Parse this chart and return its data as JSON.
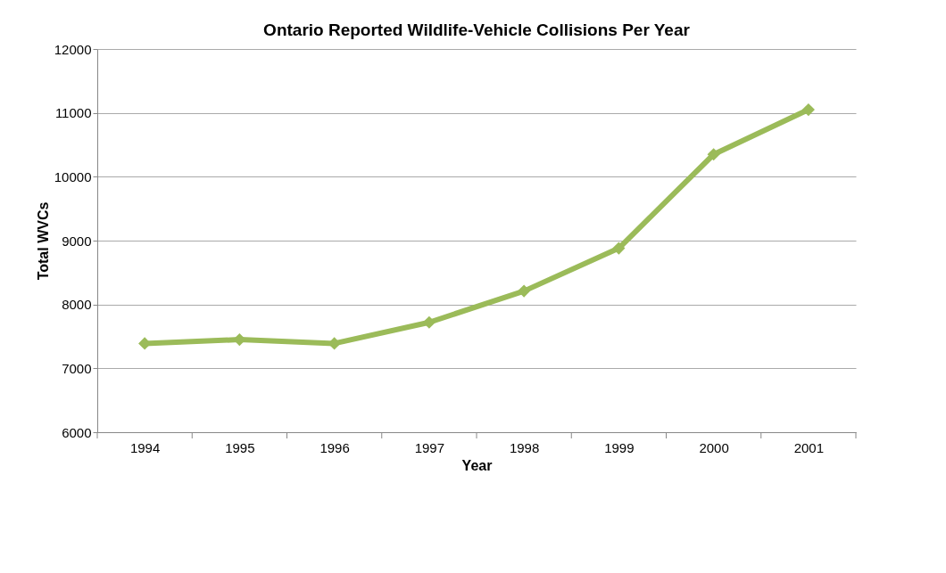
{
  "chart_data": {
    "type": "line",
    "title": "Ontario Reported Wildlife-Vehicle Collisions Per Year",
    "xlabel": "Year",
    "ylabel": "Total WVCs",
    "categories": [
      "1994",
      "1995",
      "1996",
      "1997",
      "1998",
      "1999",
      "2000",
      "2001"
    ],
    "series": [
      {
        "color": "#9bbb59",
        "values": [
          7390,
          7450,
          7390,
          7720,
          8210,
          8880,
          10350,
          11050
        ]
      }
    ],
    "ylim": [
      6000,
      12000
    ],
    "yticks": [
      6000,
      7000,
      8000,
      9000,
      10000,
      11000,
      12000
    ],
    "grid": "y",
    "marker": "diamond",
    "line_style": "solid"
  }
}
